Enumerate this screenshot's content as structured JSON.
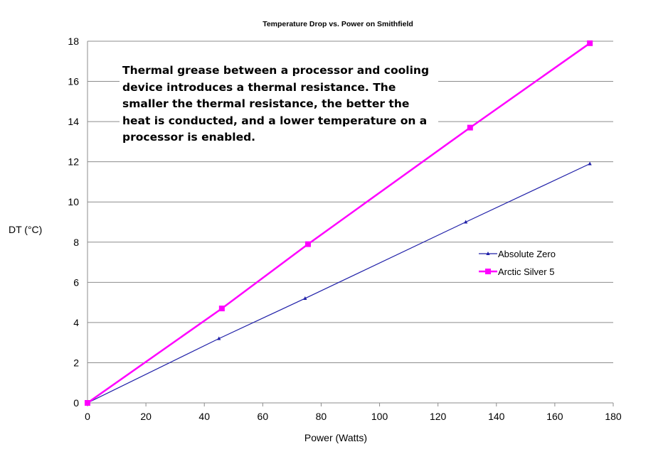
{
  "chart_data": {
    "type": "line",
    "title": "Temperature Drop vs. Power on Smithfield",
    "xlabel": "Power (Watts)",
    "ylabel": "DT (°C)",
    "xlim": [
      0,
      180
    ],
    "ylim": [
      0,
      18
    ],
    "x_ticks": [
      "0",
      "20",
      "40",
      "60",
      "80",
      "100",
      "120",
      "140",
      "160",
      "180"
    ],
    "y_ticks": [
      "0",
      "2",
      "4",
      "6",
      "8",
      "10",
      "12",
      "14",
      "16",
      "18"
    ],
    "grid": "horizontal",
    "legend_position": "right",
    "annotation": "Thermal grease between a processor and cooling device introduces a thermal resistance. The smaller the thermal resistance, the better the heat is conducted, and a lower temperature on a processor is enabled.",
    "series": [
      {
        "name": "Absolute Zero",
        "color": "#1f1fa8",
        "marker": "small-triangle",
        "x": [
          0,
          45,
          74.5,
          129.5,
          172
        ],
        "y": [
          0,
          3.2,
          5.2,
          9.0,
          11.9
        ]
      },
      {
        "name": "Arctic Silver 5",
        "color": "#ff00ff",
        "marker": "square",
        "x": [
          0,
          46,
          75.5,
          131,
          172
        ],
        "y": [
          0,
          4.7,
          7.9,
          13.7,
          17.9
        ]
      }
    ]
  }
}
